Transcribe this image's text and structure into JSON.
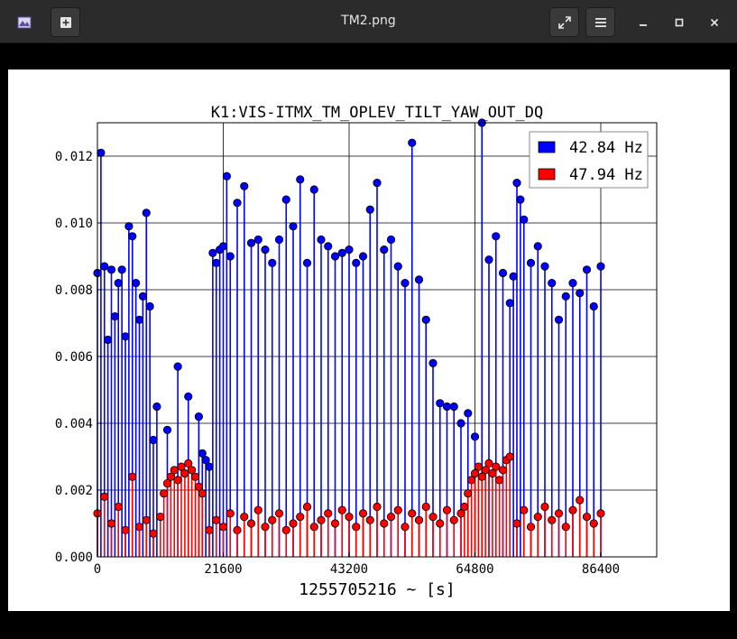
{
  "window": {
    "title": "TM2.png",
    "icons": {
      "app": "image-viewer-app-icon",
      "new": "add-image-icon",
      "fullscreen": "fullscreen-icon",
      "menu": "hamburger-menu-icon",
      "minimize": "minimize-icon",
      "maximize": "maximize-icon",
      "close": "close-icon"
    }
  },
  "chart_data": {
    "type": "scatter",
    "title": "K1:VIS-ITMX_TM_OPLEV_TILT_YAW_OUT_DQ",
    "xlabel": "1255705216 ~ [s]",
    "ylabel": "",
    "xlim": [
      0,
      96000
    ],
    "ylim": [
      0,
      0.013
    ],
    "xticks": [
      0,
      21600,
      43200,
      64800,
      86400
    ],
    "xtick_labels": [
      "0",
      "21600",
      "43200",
      "64800",
      "86400"
    ],
    "yticks": [
      0,
      0.002,
      0.004,
      0.006,
      0.008,
      0.01,
      0.012
    ],
    "ytick_labels": [
      "0.000",
      "0.002",
      "0.004",
      "0.006",
      "0.008",
      "0.010",
      "0.012"
    ],
    "grid": true,
    "legend_position": "top-right",
    "style": "stem plot with circular markers",
    "series": [
      {
        "name": "42.84 Hz",
        "color": "#0000ff",
        "edge_color": "#000000",
        "x": [
          0,
          600,
          1200,
          1800,
          2400,
          3000,
          3600,
          4200,
          4800,
          5400,
          6000,
          6600,
          7200,
          7800,
          8400,
          9000,
          9600,
          10200,
          12000,
          13800,
          15600,
          17400,
          18000,
          18600,
          19200,
          19800,
          20400,
          21000,
          21600,
          22200,
          22800,
          24000,
          25200,
          26400,
          27600,
          28800,
          30000,
          31200,
          32400,
          33600,
          34800,
          36000,
          37200,
          38400,
          39600,
          40800,
          42000,
          43200,
          44400,
          45600,
          46800,
          48000,
          49200,
          50400,
          51600,
          52800,
          54000,
          55200,
          56400,
          57600,
          58800,
          60000,
          61200,
          62400,
          63600,
          64800,
          66000,
          67200,
          68400,
          69600,
          70800,
          71400,
          72000,
          72600,
          73200,
          74400,
          75600,
          76800,
          78000,
          79200,
          80400,
          81600,
          82800,
          84000,
          85200,
          86400
        ],
        "y": [
          0.0085,
          0.0121,
          0.0087,
          0.0065,
          0.0086,
          0.0072,
          0.0082,
          0.0086,
          0.0066,
          0.0099,
          0.0096,
          0.0082,
          0.0071,
          0.0078,
          0.0103,
          0.0075,
          0.0035,
          0.0045,
          0.0038,
          0.0057,
          0.0048,
          0.0042,
          0.0031,
          0.0029,
          0.0027,
          0.0091,
          0.0088,
          0.0092,
          0.0093,
          0.0114,
          0.009,
          0.0106,
          0.0111,
          0.0094,
          0.0095,
          0.0092,
          0.0088,
          0.0095,
          0.0107,
          0.0099,
          0.0113,
          0.0088,
          0.011,
          0.0095,
          0.0093,
          0.009,
          0.0091,
          0.0092,
          0.0088,
          0.009,
          0.0104,
          0.0112,
          0.0092,
          0.0095,
          0.0087,
          0.0082,
          0.0124,
          0.0083,
          0.0071,
          0.0058,
          0.0046,
          0.0045,
          0.0045,
          0.004,
          0.0043,
          0.0036,
          0.013,
          0.0089,
          0.0096,
          0.0085,
          0.0076,
          0.0084,
          0.0112,
          0.0107,
          0.0101,
          0.0088,
          0.0093,
          0.0087,
          0.0082,
          0.0071,
          0.0078,
          0.0082,
          0.0079,
          0.0086,
          0.0075,
          0.0087
        ]
      },
      {
        "name": "47.94 Hz",
        "color": "#ff0000",
        "edge_color": "#000000",
        "x": [
          0,
          1200,
          2400,
          3600,
          4800,
          6000,
          7200,
          8400,
          9600,
          10800,
          11400,
          12000,
          12600,
          13200,
          13800,
          14400,
          15000,
          15600,
          16200,
          16800,
          17400,
          18000,
          19200,
          20400,
          21600,
          22800,
          24000,
          25200,
          26400,
          27600,
          28800,
          30000,
          31200,
          32400,
          33600,
          34800,
          36000,
          37200,
          38400,
          39600,
          40800,
          42000,
          43200,
          44400,
          45600,
          46800,
          48000,
          49200,
          50400,
          51600,
          52800,
          54000,
          55200,
          56400,
          57600,
          58800,
          60000,
          61200,
          62400,
          63000,
          63600,
          64200,
          64800,
          65400,
          66000,
          66600,
          67200,
          67800,
          68400,
          69000,
          69600,
          70200,
          70800,
          72000,
          73200,
          74400,
          75600,
          76800,
          78000,
          79200,
          80400,
          81600,
          82800,
          84000,
          85200,
          86400
        ],
        "y": [
          0.0013,
          0.0018,
          0.001,
          0.0015,
          0.0008,
          0.0024,
          0.0009,
          0.0011,
          0.0007,
          0.0012,
          0.0019,
          0.0022,
          0.0024,
          0.0026,
          0.0023,
          0.0027,
          0.0025,
          0.0028,
          0.0026,
          0.0024,
          0.0021,
          0.0019,
          0.0008,
          0.0011,
          0.0009,
          0.0013,
          0.0008,
          0.0012,
          0.001,
          0.0014,
          0.0009,
          0.0011,
          0.0013,
          0.0008,
          0.001,
          0.0012,
          0.0015,
          0.0009,
          0.0011,
          0.0013,
          0.001,
          0.0014,
          0.0012,
          0.0009,
          0.0013,
          0.0011,
          0.0015,
          0.001,
          0.0012,
          0.0014,
          0.0009,
          0.0013,
          0.0011,
          0.0015,
          0.0012,
          0.001,
          0.0014,
          0.0011,
          0.0013,
          0.0015,
          0.0019,
          0.0023,
          0.0025,
          0.0027,
          0.0024,
          0.0026,
          0.0028,
          0.0025,
          0.0027,
          0.0023,
          0.0026,
          0.0029,
          0.003,
          0.001,
          0.0014,
          0.0009,
          0.0012,
          0.0015,
          0.0011,
          0.0013,
          0.0009,
          0.0014,
          0.0017,
          0.0012,
          0.001,
          0.0013
        ]
      }
    ]
  }
}
